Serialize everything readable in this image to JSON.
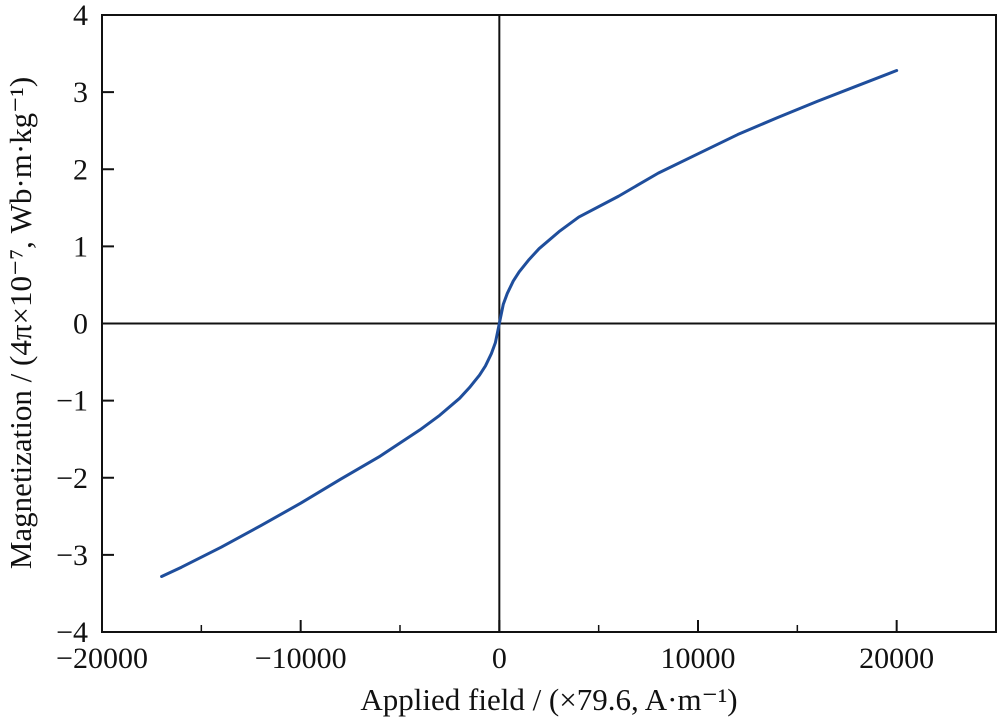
{
  "chart_data": {
    "type": "line",
    "title": "",
    "xlabel": "Applied field / (×79.6, A·m⁻¹)",
    "ylabel": "Magnetization / (4π×10⁻⁷, Wb·m·kg⁻¹)",
    "xlim": [
      -20000,
      25000
    ],
    "ylim": [
      -4,
      4
    ],
    "xticks": [
      -20000,
      -10000,
      0,
      10000,
      20000
    ],
    "xtick_labels": [
      "−20000",
      "−10000",
      "0",
      "10000",
      "20000"
    ],
    "xminor_ticks": [
      -15000,
      -5000,
      5000,
      15000
    ],
    "yticks": [
      -4,
      -3,
      -2,
      -1,
      0,
      1,
      2,
      3,
      4
    ],
    "ytick_labels": [
      "−4",
      "−3",
      "−2",
      "−1",
      "0",
      "1",
      "2",
      "3",
      "4"
    ],
    "zero_lines": true,
    "grid": false,
    "legend": "none",
    "line_color": "#1f4e9c",
    "series": [
      {
        "x": [
          -17000,
          -16000,
          -14000,
          -12000,
          -10000,
          -8000,
          -6000,
          -4000,
          -3000,
          -2000,
          -1500,
          -1000,
          -700,
          -400,
          -200,
          0,
          200,
          400,
          700,
          1000,
          1500,
          2000,
          3000,
          4000,
          6000,
          8000,
          10000,
          12000,
          14000,
          16000,
          18000,
          20000
        ],
        "y": [
          -3.28,
          -3.16,
          -2.9,
          -2.62,
          -2.33,
          -2.02,
          -1.72,
          -1.38,
          -1.19,
          -0.97,
          -0.83,
          -0.67,
          -0.55,
          -0.39,
          -0.25,
          0.0,
          0.25,
          0.39,
          0.55,
          0.67,
          0.83,
          0.97,
          1.19,
          1.38,
          1.65,
          1.95,
          2.2,
          2.45,
          2.67,
          2.88,
          3.08,
          3.28
        ]
      }
    ]
  }
}
